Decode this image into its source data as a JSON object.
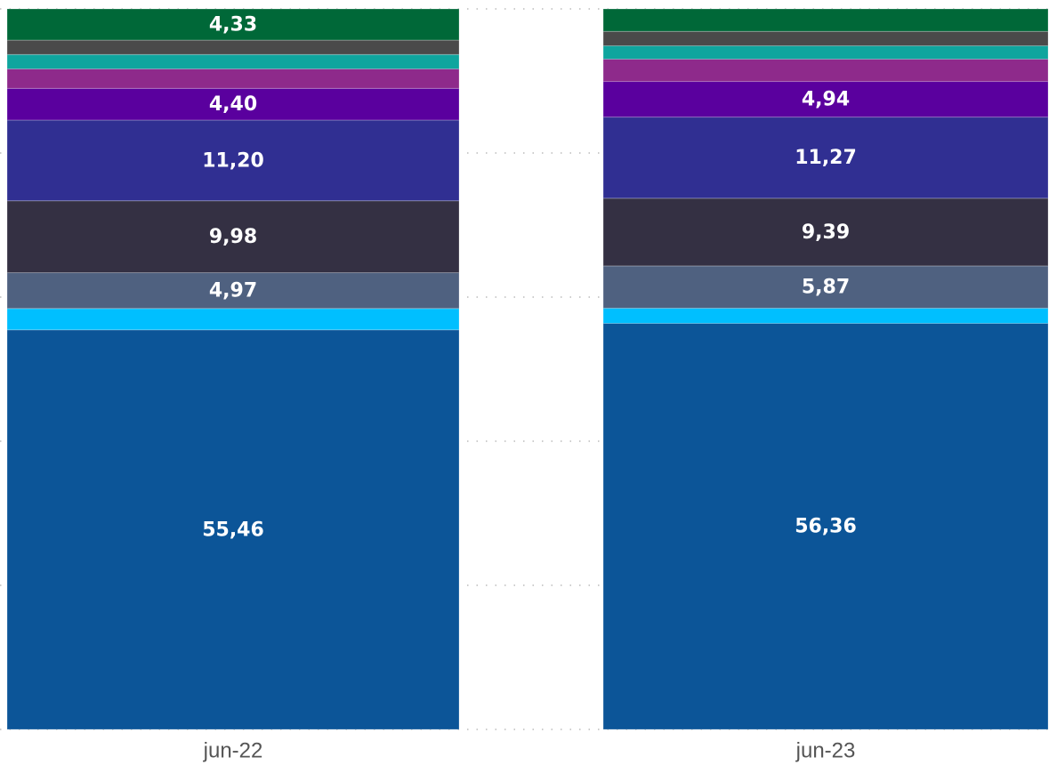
{
  "chart_data": {
    "type": "stacked_bar_100",
    "categories": [
      "jun-22",
      "jun-23"
    ],
    "ylim": [
      0,
      100
    ],
    "yticks": [
      0,
      20,
      40,
      60,
      80,
      100
    ],
    "grid": true,
    "series": [
      {
        "color": "#0C5598",
        "values": [
          55.46,
          56.36
        ],
        "value_labels": [
          "55,46",
          "56,36"
        ]
      },
      {
        "color": "#00BFFF",
        "values": [
          2.96,
          2.1
        ],
        "value_labels": [
          null,
          null
        ]
      },
      {
        "color": "#4F6180",
        "values": [
          4.97,
          5.87
        ],
        "value_labels": [
          "4,97",
          "5,87"
        ]
      },
      {
        "color": "#343043",
        "values": [
          9.98,
          9.39
        ],
        "value_labels": [
          "9,98",
          "9,39"
        ]
      },
      {
        "color": "#302F92",
        "values": [
          11.2,
          11.27
        ],
        "value_labels": [
          "11,20",
          "11,27"
        ]
      },
      {
        "color": "#5A009E",
        "values": [
          4.4,
          4.94
        ],
        "value_labels": [
          "4,40",
          "4,94"
        ]
      },
      {
        "color": "#8E2A8B",
        "values": [
          2.7,
          3.1
        ],
        "value_labels": [
          null,
          null
        ]
      },
      {
        "color": "#0FA59E",
        "values": [
          2.0,
          1.85
        ],
        "value_labels": [
          null,
          null
        ]
      },
      {
        "color": "#4A4A4A",
        "values": [
          2.0,
          2.0
        ],
        "value_labels": [
          null,
          null
        ]
      },
      {
        "color": "#006838",
        "values": [
          4.33,
          3.12
        ],
        "value_labels": [
          "4,33",
          null
        ]
      }
    ]
  }
}
